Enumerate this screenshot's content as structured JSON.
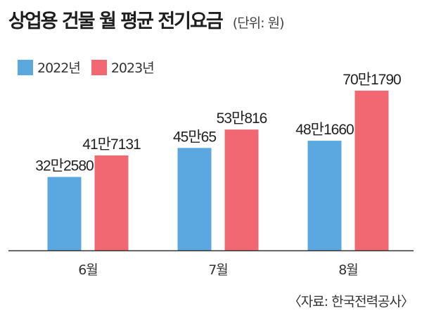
{
  "title": "상업용 건물 월 평균 전기요금",
  "unit": "(단위: 원)",
  "source": "〈자료: 한국전력공사〉",
  "colors": {
    "s2022": "#5ba8e0",
    "s2023": "#f26872",
    "axis": "#333333"
  },
  "legend": [
    {
      "label": "2022년",
      "color": "#5ba8e0"
    },
    {
      "label": "2023년",
      "color": "#f26872"
    }
  ],
  "chart_data": {
    "type": "bar",
    "title": "상업용 건물 월 평균 전기요금",
    "unit": "(단위: 원)",
    "categories": [
      "6월",
      "7월",
      "8월"
    ],
    "series": [
      {
        "name": "2022년",
        "values": [
          322580,
          450065,
          481660
        ],
        "labels": [
          "32만2580",
          "45만65",
          "48만1660"
        ]
      },
      {
        "name": "2023년",
        "values": [
          417131,
          530816,
          701790
        ],
        "labels": [
          "41만7131",
          "53만816",
          "70만1790"
        ]
      }
    ],
    "ylim": [
      0,
      760000
    ],
    "grid": false,
    "legend_position": "top-left"
  }
}
